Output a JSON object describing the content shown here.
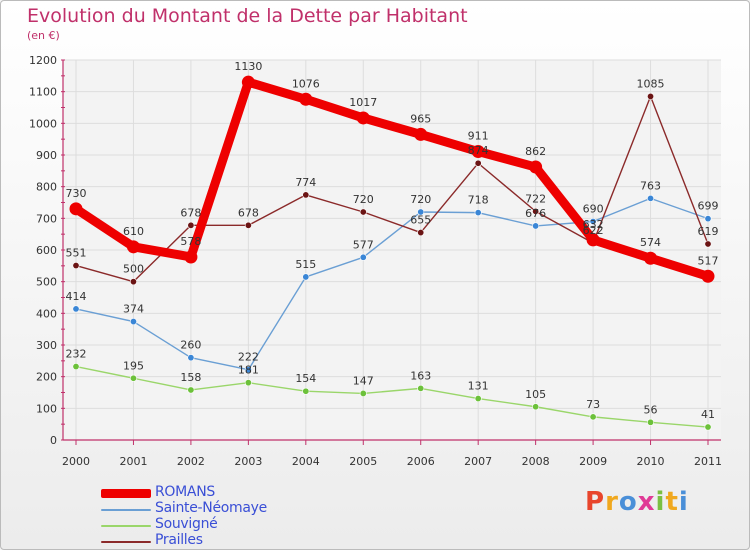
{
  "title": "Evolution du Montant de la Dette par Habitant",
  "subtitle": "(en €)",
  "logo": {
    "text": "Proxiti",
    "letter_colors": [
      "#e8452c",
      "#f0a81e",
      "#4a8fd8",
      "#e03a96",
      "#7ac043",
      "#f0a81e",
      "#4a8fd8"
    ]
  },
  "chart_data": {
    "type": "line",
    "categories": [
      "2000",
      "2001",
      "2002",
      "2003",
      "2004",
      "2005",
      "2006",
      "2007",
      "2008",
      "2009",
      "2010",
      "2011"
    ],
    "y_ticks": [
      "0",
      "100",
      "200",
      "300",
      "400",
      "500",
      "600",
      "700",
      "800",
      "900",
      "1000",
      "1100",
      "1200"
    ],
    "ylim": [
      0,
      1200
    ],
    "grid": true,
    "legend_position": "bottom-left",
    "series": [
      {
        "name": "ROMANS",
        "color": "#ee0000",
        "marker_color": "#ee0000",
        "emphasis": true,
        "values": [
          730,
          610,
          578,
          1130,
          1076,
          1017,
          965,
          911,
          862,
          632,
          574,
          517
        ],
        "labels": [
          "730",
          "610",
          "578",
          "1130",
          "1076",
          "1017",
          "965",
          "911",
          "862",
          "632",
          "574",
          "517"
        ]
      },
      {
        "name": "Sainte-Néomaye",
        "color": "#6a9fd4",
        "marker_color": "#3a86d6",
        "emphasis": false,
        "values": [
          414,
          374,
          260,
          222,
          515,
          577,
          720,
          718,
          676,
          690,
          763,
          699
        ],
        "labels": [
          "414",
          "374",
          "260",
          "222",
          "515",
          "577",
          "720",
          "718",
          "676",
          "690",
          "763",
          "699"
        ]
      },
      {
        "name": "Souvigné",
        "color": "#9ad66a",
        "marker_color": "#6cc13a",
        "emphasis": false,
        "values": [
          232,
          195,
          158,
          181,
          154,
          147,
          163,
          131,
          105,
          73,
          56,
          41
        ],
        "labels": [
          "232",
          "195",
          "158",
          "181",
          "154",
          "147",
          "163",
          "131",
          "105",
          "73",
          "56",
          "41"
        ]
      },
      {
        "name": "Prailles",
        "color": "#8b2a2a",
        "marker_color": "#6b1414",
        "emphasis": false,
        "values": [
          551,
          500,
          678,
          678,
          774,
          720,
          655,
          874,
          722,
          622,
          1085,
          619
        ],
        "labels": [
          "551",
          "500",
          "678",
          "678",
          "774",
          "720",
          "655",
          "874",
          "722",
          "622",
          "1085",
          "619"
        ]
      }
    ]
  }
}
